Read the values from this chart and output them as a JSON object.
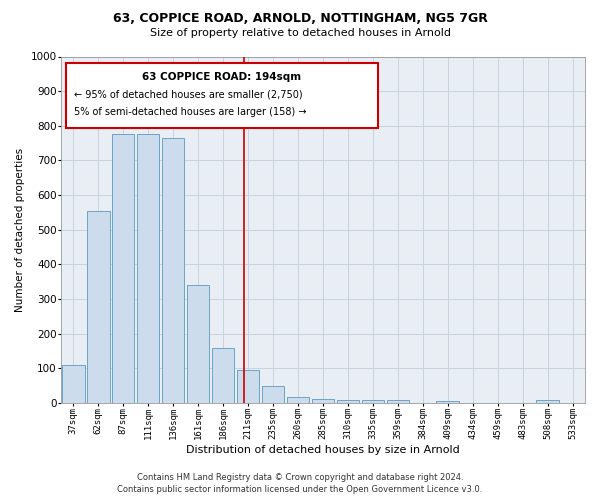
{
  "title1": "63, COPPICE ROAD, ARNOLD, NOTTINGHAM, NG5 7GR",
  "title2": "Size of property relative to detached houses in Arnold",
  "xlabel": "Distribution of detached houses by size in Arnold",
  "ylabel": "Number of detached properties",
  "categories": [
    "37sqm",
    "62sqm",
    "87sqm",
    "111sqm",
    "136sqm",
    "161sqm",
    "186sqm",
    "211sqm",
    "235sqm",
    "260sqm",
    "285sqm",
    "310sqm",
    "335sqm",
    "359sqm",
    "384sqm",
    "409sqm",
    "434sqm",
    "459sqm",
    "483sqm",
    "508sqm",
    "533sqm"
  ],
  "values": [
    110,
    555,
    775,
    775,
    765,
    340,
    160,
    95,
    50,
    18,
    12,
    10,
    8,
    10,
    0,
    5,
    0,
    0,
    0,
    10,
    0
  ],
  "bar_color": "#ccdcec",
  "bar_edge_color": "#5a9abf",
  "annotation_title": "63 COPPICE ROAD: 194sqm",
  "annotation_line1": "← 95% of detached houses are smaller (2,750)",
  "annotation_line2": "5% of semi-detached houses are larger (158) →",
  "annotation_box_color": "#ffffff",
  "annotation_box_edge": "#cc0000",
  "red_line_color": "#cc0000",
  "grid_color": "#c8d4dc",
  "background_color": "#e8eef4",
  "fig_background": "#ffffff",
  "ylim": [
    0,
    1000
  ],
  "yticks": [
    0,
    100,
    200,
    300,
    400,
    500,
    600,
    700,
    800,
    900,
    1000
  ],
  "footer1": "Contains HM Land Registry data © Crown copyright and database right 2024.",
  "footer2": "Contains public sector information licensed under the Open Government Licence v3.0."
}
